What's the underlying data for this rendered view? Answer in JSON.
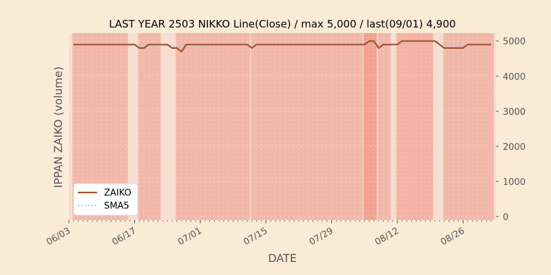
{
  "chart_data": {
    "type": "line",
    "title": "LAST YEAR 2503 NIKKO Line(Close) / max 5,000 / last(09/01) 4,900",
    "xlabel": "DATE",
    "ylabel": "IPPAN ZAIKO (volume)",
    "ylim": [
      -100,
      5230
    ],
    "yticks": [
      0,
      1000,
      2000,
      3000,
      4000,
      5000
    ],
    "ytick_labels": [
      "0",
      "1000",
      "2000",
      "3000",
      "4000",
      "5000"
    ],
    "xtick_labels": [
      "06/03",
      "06/17",
      "07/01",
      "07/15",
      "07/29",
      "08/12",
      "08/26"
    ],
    "xtick_dates": [
      "2024-06-03",
      "2024-06-17",
      "2024-07-01",
      "2024-07-15",
      "2024-07-29",
      "2024-08-12",
      "2024-08-26"
    ],
    "xlim": [
      "2024-06-03",
      "2024-09-02"
    ],
    "grid": true,
    "legend_position": "lower-left",
    "colors": {
      "background": "#faebd7",
      "plot_background": "#f6ddd0",
      "zaiko_line": "#a0522d",
      "sma_line": "#9ecae1",
      "band_light": "#f1b8aa",
      "band_mid": "#f4b2a4",
      "band_dark": "#f2a293"
    },
    "series": [
      {
        "name": "ZAIKO",
        "style": "solid",
        "points": [
          [
            "2024-06-04",
            4900
          ],
          [
            "2024-06-05",
            4900
          ],
          [
            "2024-06-06",
            4900
          ],
          [
            "2024-06-07",
            4900
          ],
          [
            "2024-06-10",
            4900
          ],
          [
            "2024-06-11",
            4900
          ],
          [
            "2024-06-12",
            4900
          ],
          [
            "2024-06-13",
            4900
          ],
          [
            "2024-06-14",
            4900
          ],
          [
            "2024-06-17",
            4900
          ],
          [
            "2024-06-18",
            4800
          ],
          [
            "2024-06-19",
            4800
          ],
          [
            "2024-06-20",
            4900
          ],
          [
            "2024-06-21",
            4900
          ],
          [
            "2024-06-24",
            4900
          ],
          [
            "2024-06-25",
            4800
          ],
          [
            "2024-06-26",
            4800
          ],
          [
            "2024-06-27",
            4700
          ],
          [
            "2024-06-28",
            4900
          ],
          [
            "2024-07-01",
            4900
          ],
          [
            "2024-07-02",
            4900
          ],
          [
            "2024-07-03",
            4900
          ],
          [
            "2024-07-04",
            4900
          ],
          [
            "2024-07-05",
            4900
          ],
          [
            "2024-07-08",
            4900
          ],
          [
            "2024-07-09",
            4900
          ],
          [
            "2024-07-10",
            4900
          ],
          [
            "2024-07-11",
            4900
          ],
          [
            "2024-07-12",
            4800
          ],
          [
            "2024-07-13",
            4900
          ],
          [
            "2024-07-16",
            4900
          ],
          [
            "2024-07-17",
            4900
          ],
          [
            "2024-07-18",
            4900
          ],
          [
            "2024-07-19",
            4900
          ],
          [
            "2024-07-22",
            4900
          ],
          [
            "2024-07-23",
            4900
          ],
          [
            "2024-07-24",
            4900
          ],
          [
            "2024-07-25",
            4900
          ],
          [
            "2024-07-26",
            4900
          ],
          [
            "2024-07-29",
            4900
          ],
          [
            "2024-07-30",
            4900
          ],
          [
            "2024-07-31",
            4900
          ],
          [
            "2024-08-01",
            4900
          ],
          [
            "2024-08-02",
            4900
          ],
          [
            "2024-08-05",
            4900
          ],
          [
            "2024-08-06",
            5000
          ],
          [
            "2024-08-07",
            5000
          ],
          [
            "2024-08-08",
            4800
          ],
          [
            "2024-08-09",
            4900
          ],
          [
            "2024-08-12",
            4900
          ],
          [
            "2024-08-13",
            5000
          ],
          [
            "2024-08-14",
            5000
          ],
          [
            "2024-08-15",
            5000
          ],
          [
            "2024-08-16",
            5000
          ],
          [
            "2024-08-19",
            5000
          ],
          [
            "2024-08-20",
            5000
          ],
          [
            "2024-08-21",
            4900
          ],
          [
            "2024-08-22",
            4800
          ],
          [
            "2024-08-23",
            4800
          ],
          [
            "2024-08-26",
            4800
          ],
          [
            "2024-08-27",
            4900
          ],
          [
            "2024-08-28",
            4900
          ],
          [
            "2024-08-29",
            4900
          ],
          [
            "2024-08-30",
            4900
          ],
          [
            "2024-09-01",
            4900
          ]
        ]
      },
      {
        "name": "SMA5",
        "style": "dotted",
        "points": [
          [
            "2024-06-04",
            4900
          ],
          [
            "2024-06-07",
            4900
          ],
          [
            "2024-06-14",
            4900
          ],
          [
            "2024-06-17",
            4900
          ],
          [
            "2024-06-18",
            4880
          ],
          [
            "2024-06-19",
            4860
          ],
          [
            "2024-06-20",
            4860
          ],
          [
            "2024-06-21",
            4860
          ],
          [
            "2024-06-24",
            4880
          ],
          [
            "2024-06-25",
            4860
          ],
          [
            "2024-06-26",
            4840
          ],
          [
            "2024-06-27",
            4820
          ],
          [
            "2024-06-28",
            4820
          ],
          [
            "2024-07-01",
            4820
          ],
          [
            "2024-07-02",
            4840
          ],
          [
            "2024-07-03",
            4880
          ],
          [
            "2024-07-04",
            4900
          ],
          [
            "2024-07-11",
            4900
          ],
          [
            "2024-07-12",
            4880
          ],
          [
            "2024-07-13",
            4880
          ],
          [
            "2024-07-16",
            4880
          ],
          [
            "2024-07-17",
            4880
          ],
          [
            "2024-07-18",
            4900
          ],
          [
            "2024-08-05",
            4900
          ],
          [
            "2024-08-06",
            4920
          ],
          [
            "2024-08-07",
            4940
          ],
          [
            "2024-08-08",
            4920
          ],
          [
            "2024-08-09",
            4920
          ],
          [
            "2024-08-12",
            4920
          ],
          [
            "2024-08-13",
            4920
          ],
          [
            "2024-08-14",
            4960
          ],
          [
            "2024-08-15",
            5000
          ],
          [
            "2024-08-20",
            5000
          ],
          [
            "2024-08-21",
            4980
          ],
          [
            "2024-08-22",
            4940
          ],
          [
            "2024-08-23",
            4900
          ],
          [
            "2024-08-26",
            4860
          ],
          [
            "2024-08-27",
            4860
          ],
          [
            "2024-08-28",
            4880
          ],
          [
            "2024-08-29",
            4900
          ],
          [
            "2024-09-01",
            4900
          ]
        ]
      }
    ],
    "bands": [
      {
        "start": "2024-06-04",
        "end": "2024-06-15",
        "shade": "band_light"
      },
      {
        "start": "2024-06-18",
        "end": "2024-06-22",
        "shade": "band_light"
      },
      {
        "start": "2024-06-26",
        "end": "2024-07-11",
        "shade": "band_light"
      },
      {
        "start": "2024-07-12",
        "end": "2024-08-04",
        "shade": "band_light"
      },
      {
        "start": "2024-08-05",
        "end": "2024-08-07",
        "shade": "band_dark"
      },
      {
        "start": "2024-08-08",
        "end": "2024-08-10",
        "shade": "band_light"
      },
      {
        "start": "2024-08-12",
        "end": "2024-08-19",
        "shade": "band_mid"
      },
      {
        "start": "2024-08-22",
        "end": "2024-09-01",
        "shade": "band_light"
      }
    ]
  }
}
